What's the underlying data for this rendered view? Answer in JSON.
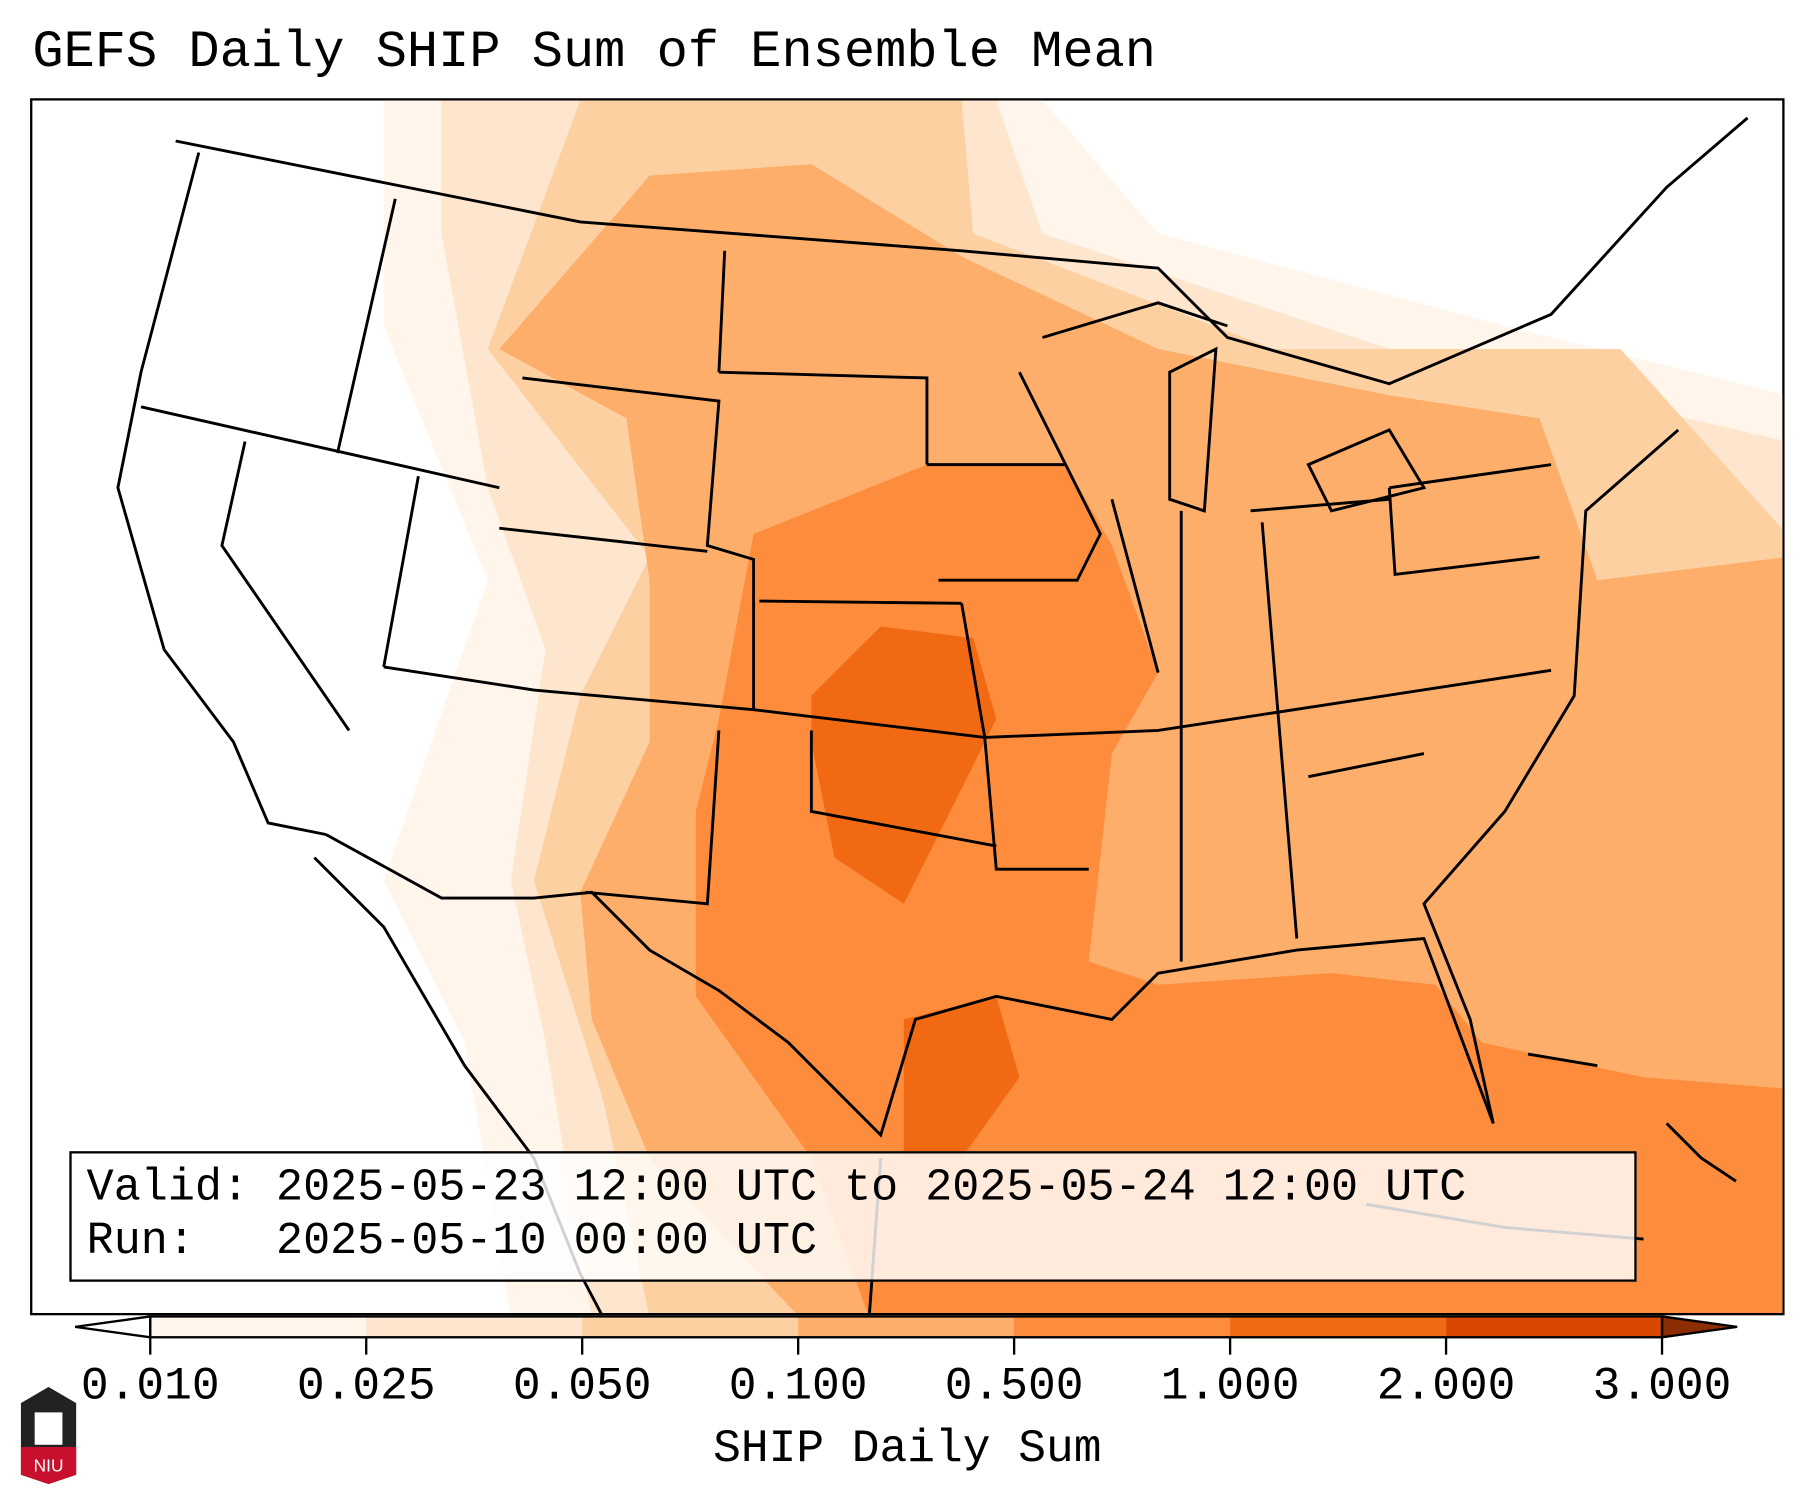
{
  "title": "GEFS Daily SHIP Sum of Ensemble Mean",
  "info": {
    "valid_label": "Valid:",
    "valid_text": "2025-05-23 12:00 UTC to 2025-05-24 12:00 UTC",
    "run_label": "Run:",
    "run_text": "2025-05-10 00:00 UTC"
  },
  "colorbar": {
    "label": "SHIP Daily Sum",
    "ticks": [
      "0.010",
      "0.025",
      "0.050",
      "0.100",
      "0.500",
      "1.000",
      "2.000",
      "3.000"
    ],
    "colors": [
      "#fff5eb",
      "#fee6ce",
      "#fdd0a2",
      "#fdae6b",
      "#fd8d3c",
      "#f16913",
      "#d94801",
      "#8c2d04"
    ],
    "extend": "both"
  },
  "logo": {
    "text": "NIU"
  }
}
